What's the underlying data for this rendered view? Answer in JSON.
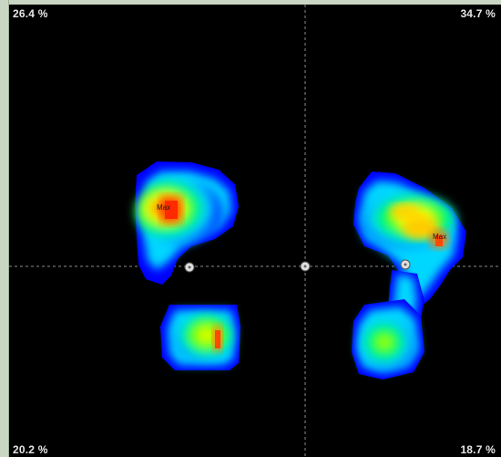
{
  "quadrants": {
    "top_left": "26.4 %",
    "top_right": "34.7 %",
    "bottom_left": "20.2 %",
    "bottom_right": "18.7 %"
  },
  "feet": {
    "left_max_label": "Max",
    "right_max_label": "Max"
  },
  "colors": {
    "background": "#000000",
    "crosshair": "#8c8c8c",
    "low": "#0000ff",
    "mid_low": "#00d7ff",
    "mid": "#00ff3c",
    "mid_high": "#ffff00",
    "high": "#ff7f00",
    "peak": "#ff2a00"
  }
}
